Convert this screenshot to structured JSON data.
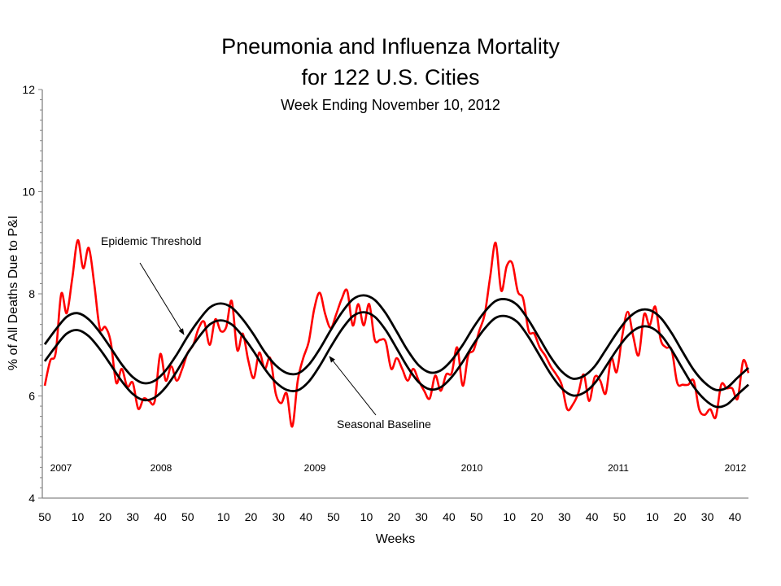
{
  "chart_data": {
    "type": "line",
    "title": "Pneumonia and Influenza Mortality",
    "title_line2": "for 122 U.S. Cities",
    "subtitle": "Week Ending November 10, 2012",
    "xlabel": "Weeks",
    "ylabel": "% of All Deaths Due to P&I",
    "ylim": [
      4,
      12
    ],
    "y_ticks": [
      "4",
      "6",
      "8",
      "10",
      "12"
    ],
    "x_range": [
      "2007 week 50",
      "2012 week 45"
    ],
    "x_ticks": [
      {
        "label": "50",
        "week": "2007-50"
      },
      {
        "label": "10",
        "week": "2008-10"
      },
      {
        "label": "20",
        "week": "2008-20"
      },
      {
        "label": "30",
        "week": "2008-30"
      },
      {
        "label": "40",
        "week": "2008-40"
      },
      {
        "label": "50",
        "week": "2008-50"
      },
      {
        "label": "10",
        "week": "2009-10"
      },
      {
        "label": "20",
        "week": "2009-20"
      },
      {
        "label": "30",
        "week": "2009-30"
      },
      {
        "label": "40",
        "week": "2009-40"
      },
      {
        "label": "50",
        "week": "2009-50"
      },
      {
        "label": "10",
        "week": "2010-10"
      },
      {
        "label": "20",
        "week": "2010-20"
      },
      {
        "label": "30",
        "week": "2010-30"
      },
      {
        "label": "40",
        "week": "2010-40"
      },
      {
        "label": "50",
        "week": "2010-50"
      },
      {
        "label": "10",
        "week": "2011-10"
      },
      {
        "label": "20",
        "week": "2011-20"
      },
      {
        "label": "30",
        "week": "2011-30"
      },
      {
        "label": "40",
        "week": "2011-40"
      },
      {
        "label": "50",
        "week": "2011-50"
      },
      {
        "label": "10",
        "week": "2012-10"
      },
      {
        "label": "20",
        "week": "2012-20"
      },
      {
        "label": "30",
        "week": "2012-30"
      },
      {
        "label": "40",
        "week": "2012-40"
      }
    ],
    "year_labels": [
      "2007",
      "2008",
      "2009",
      "2010",
      "2011",
      "2012"
    ],
    "grid": false,
    "legend": "none",
    "annotations": [
      {
        "text": "Epidemic Threshold",
        "points_to": "Epidemic Threshold curve"
      },
      {
        "text": "Seasonal Baseline",
        "points_to": "Seasonal Baseline curve"
      }
    ],
    "series": [
      {
        "key": "observed",
        "color": "#ff0000",
        "start_week": "2007-50",
        "step_weeks": 2,
        "values": [
          6.2,
          6.69,
          6.85,
          8.0,
          7.62,
          8.3,
          9.05,
          8.5,
          8.9,
          8.2,
          7.33,
          7.35,
          7.06,
          6.26,
          6.53,
          6.18,
          6.26,
          5.75,
          5.95,
          5.9,
          5.9,
          6.82,
          6.3,
          6.58,
          6.3,
          6.53,
          6.85,
          7.0,
          7.33,
          7.45,
          7.0,
          7.5,
          7.27,
          7.35,
          7.86,
          6.9,
          7.22,
          6.7,
          6.35,
          6.85,
          6.53,
          6.74,
          6.05,
          5.86,
          6.05,
          5.4,
          6.3,
          6.74,
          7.06,
          7.7,
          8.02,
          7.6,
          7.33,
          7.6,
          7.9,
          8.06,
          7.38,
          7.8,
          7.38,
          7.8,
          7.1,
          7.1,
          7.06,
          6.53,
          6.74,
          6.53,
          6.3,
          6.53,
          6.3,
          6.1,
          5.95,
          6.4,
          6.1,
          6.42,
          6.45,
          6.95,
          6.2,
          6.79,
          6.9,
          7.27,
          7.6,
          8.34,
          9.0,
          8.06,
          8.54,
          8.6,
          8.05,
          7.9,
          7.27,
          7.22,
          6.95,
          6.79,
          6.58,
          6.42,
          6.22,
          5.74,
          5.83,
          6.05,
          6.42,
          5.9,
          6.37,
          6.3,
          6.05,
          6.74,
          6.47,
          7.17,
          7.65,
          7.17,
          6.8,
          7.6,
          7.38,
          7.75,
          7.1,
          6.95,
          6.9,
          6.26,
          6.22,
          6.22,
          6.3,
          5.74,
          5.63,
          5.74,
          5.58,
          6.22,
          6.15,
          6.15,
          5.95,
          6.69,
          6.45
        ]
      },
      {
        "key": "threshold",
        "name": "Epidemic Threshold",
        "color": "#000000",
        "start_week": "2007-50",
        "step_weeks": 4,
        "values": [
          7.01,
          7.3,
          7.55,
          7.62,
          7.5,
          7.25,
          6.94,
          6.62,
          6.37,
          6.25,
          6.3,
          6.5,
          6.81,
          7.17,
          7.48,
          7.73,
          7.81,
          7.73,
          7.5,
          7.2,
          6.86,
          6.6,
          6.45,
          6.44,
          6.61,
          6.92,
          7.29,
          7.63,
          7.89,
          7.97,
          7.88,
          7.62,
          7.26,
          6.89,
          6.6,
          6.46,
          6.5,
          6.7,
          7.0,
          7.35,
          7.65,
          7.86,
          7.89,
          7.77,
          7.48,
          7.12,
          6.76,
          6.48,
          6.34,
          6.39,
          6.58,
          6.9,
          7.23,
          7.51,
          7.67,
          7.68,
          7.53,
          7.23,
          6.86,
          6.51,
          6.26,
          6.12,
          6.16,
          6.36,
          6.55
        ]
      },
      {
        "key": "baseline",
        "name": "Seasonal Baseline",
        "color": "#000000",
        "start_week": "2007-50",
        "step_weeks": 4,
        "values": [
          6.68,
          6.97,
          7.22,
          7.29,
          7.17,
          6.92,
          6.61,
          6.29,
          6.04,
          5.92,
          5.97,
          6.17,
          6.48,
          6.84,
          7.15,
          7.4,
          7.48,
          7.4,
          7.17,
          6.87,
          6.53,
          6.27,
          6.12,
          6.11,
          6.28,
          6.59,
          6.96,
          7.3,
          7.56,
          7.64,
          7.55,
          7.29,
          6.93,
          6.56,
          6.27,
          6.13,
          6.17,
          6.37,
          6.67,
          7.02,
          7.32,
          7.53,
          7.56,
          7.44,
          7.15,
          6.79,
          6.43,
          6.15,
          6.01,
          6.06,
          6.25,
          6.57,
          6.9,
          7.18,
          7.34,
          7.35,
          7.2,
          6.9,
          6.53,
          6.18,
          5.93,
          5.79,
          5.83,
          6.03,
          6.22
        ]
      }
    ]
  }
}
